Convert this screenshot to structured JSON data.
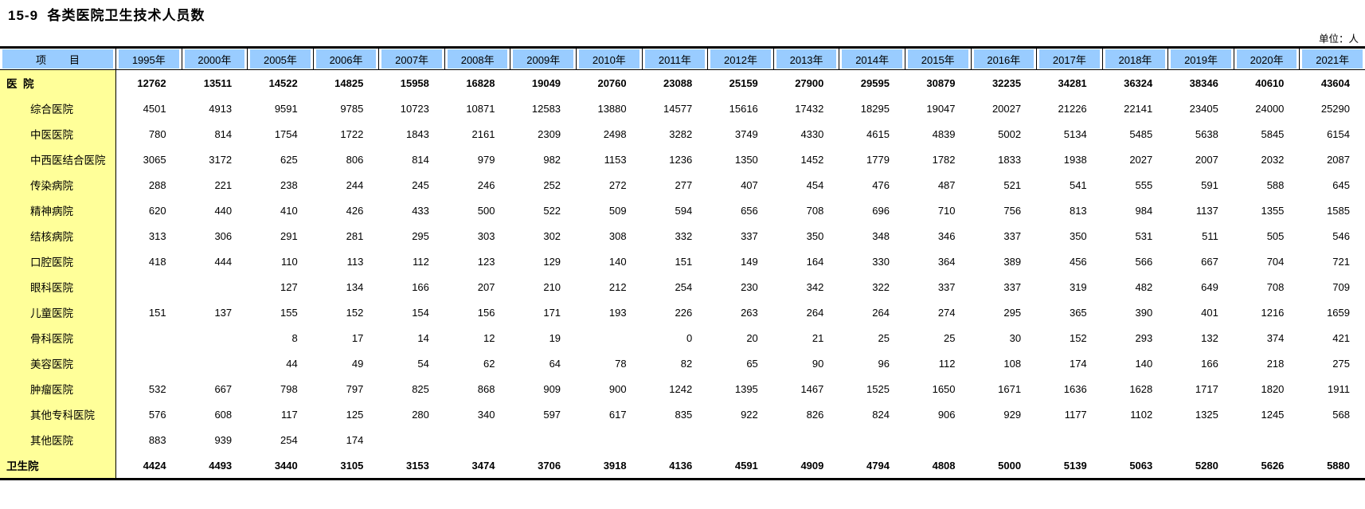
{
  "title": "15-9  各类医院卫生技术人员数",
  "unit_label": "单位：人",
  "table": {
    "item_header": "项        目",
    "year_headers": [
      "1995年",
      "2000年",
      "2005年",
      "2006年",
      "2007年",
      "2008年",
      "2009年",
      "2010年",
      "2011年",
      "2012年",
      "2013年",
      "2014年",
      "2015年",
      "2016年",
      "2017年",
      "2018年",
      "2019年",
      "2020年",
      "2021年"
    ],
    "rows": [
      {
        "label": "医  院",
        "bold": true,
        "values": [
          12762,
          13511,
          14522,
          14825,
          15958,
          16828,
          19049,
          20760,
          23088,
          25159,
          27900,
          29595,
          30879,
          32235,
          34281,
          36324,
          38346,
          40610,
          43604
        ]
      },
      {
        "label": "综合医院",
        "bold": false,
        "values": [
          4501,
          4913,
          9591,
          9785,
          10723,
          10871,
          12583,
          13880,
          14577,
          15616,
          17432,
          18295,
          19047,
          20027,
          21226,
          22141,
          23405,
          24000,
          25290
        ]
      },
      {
        "label": "中医医院",
        "bold": false,
        "values": [
          780,
          814,
          1754,
          1722,
          1843,
          2161,
          2309,
          2498,
          3282,
          3749,
          4330,
          4615,
          4839,
          5002,
          5134,
          5485,
          5638,
          5845,
          6154
        ]
      },
      {
        "label": "中西医结合医院",
        "bold": false,
        "values": [
          3065,
          3172,
          625,
          806,
          814,
          979,
          982,
          1153,
          1236,
          1350,
          1452,
          1779,
          1782,
          1833,
          1938,
          2027,
          2007,
          2032,
          2087
        ]
      },
      {
        "label": "传染病院",
        "bold": false,
        "values": [
          288,
          221,
          238,
          244,
          245,
          246,
          252,
          272,
          277,
          407,
          454,
          476,
          487,
          521,
          541,
          555,
          591,
          588,
          645
        ]
      },
      {
        "label": "精神病院",
        "bold": false,
        "values": [
          620,
          440,
          410,
          426,
          433,
          500,
          522,
          509,
          594,
          656,
          708,
          696,
          710,
          756,
          813,
          984,
          1137,
          1355,
          1585
        ]
      },
      {
        "label": "结核病院",
        "bold": false,
        "values": [
          313,
          306,
          291,
          281,
          295,
          303,
          302,
          308,
          332,
          337,
          350,
          348,
          346,
          337,
          350,
          531,
          511,
          505,
          546
        ]
      },
      {
        "label": "口腔医院",
        "bold": false,
        "values": [
          418,
          444,
          110,
          113,
          112,
          123,
          129,
          140,
          151,
          149,
          164,
          330,
          364,
          389,
          456,
          566,
          667,
          704,
          721
        ]
      },
      {
        "label": "眼科医院",
        "bold": false,
        "values": [
          "",
          "",
          127,
          134,
          166,
          207,
          210,
          212,
          254,
          230,
          342,
          322,
          337,
          337,
          319,
          482,
          649,
          708,
          709
        ]
      },
      {
        "label": "儿童医院",
        "bold": false,
        "values": [
          151,
          137,
          155,
          152,
          154,
          156,
          171,
          193,
          226,
          263,
          264,
          264,
          274,
          295,
          365,
          390,
          401,
          1216,
          1659
        ]
      },
      {
        "label": "骨科医院",
        "bold": false,
        "values": [
          "",
          "",
          8,
          17,
          14,
          12,
          19,
          "",
          0,
          20,
          21,
          25,
          25,
          30,
          152,
          293,
          132,
          374,
          421
        ]
      },
      {
        "label": "美容医院",
        "bold": false,
        "values": [
          "",
          "",
          44,
          49,
          54,
          62,
          64,
          78,
          82,
          65,
          90,
          96,
          112,
          108,
          174,
          140,
          166,
          218,
          275
        ]
      },
      {
        "label": "肿瘤医院",
        "bold": false,
        "values": [
          532,
          667,
          798,
          797,
          825,
          868,
          909,
          900,
          1242,
          1395,
          1467,
          1525,
          1650,
          1671,
          1636,
          1628,
          1717,
          1820,
          1911
        ]
      },
      {
        "label": "其他专科医院",
        "bold": false,
        "values": [
          576,
          608,
          117,
          125,
          280,
          340,
          597,
          617,
          835,
          922,
          826,
          824,
          906,
          929,
          1177,
          1102,
          1325,
          1245,
          568
        ]
      },
      {
        "label": "其他医院",
        "bold": false,
        "values": [
          883,
          939,
          254,
          174,
          "",
          "",
          "",
          "",
          "",
          "",
          "",
          "",
          "",
          "",
          "",
          "",
          "",
          "",
          ""
        ]
      },
      {
        "label": "卫生院",
        "bold": true,
        "values": [
          4424,
          4493,
          3440,
          3105,
          3153,
          3474,
          3706,
          3918,
          4136,
          4591,
          4909,
          4794,
          4808,
          5000,
          5139,
          5063,
          5280,
          5626,
          5880
        ]
      }
    ]
  }
}
